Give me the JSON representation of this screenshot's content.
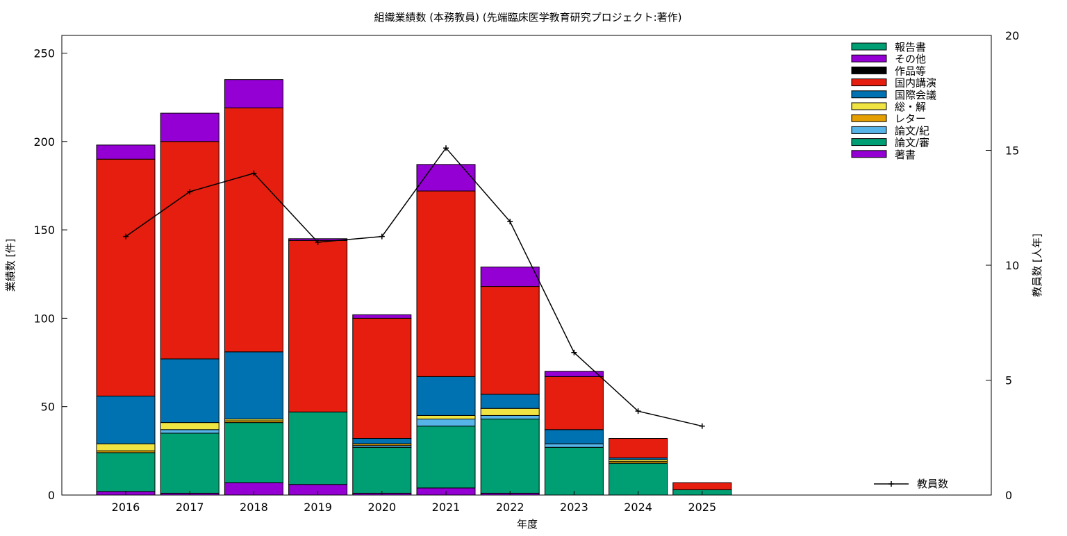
{
  "chart_data": {
    "type": "bar",
    "stacked": true,
    "title": "組織業績数 (本務教員) (先端臨床医学教育研究プロジェクト:著作)",
    "xlabel": "年度",
    "ylabel": "業績数 [件]",
    "y2label": "教員数 [人年]",
    "ylim": [
      0,
      260
    ],
    "y2lim": [
      0,
      20
    ],
    "yticks": [
      0,
      50,
      100,
      150,
      200,
      250
    ],
    "y2ticks": [
      0,
      5,
      10,
      15,
      20
    ],
    "grid": false,
    "legend_position": "top-right",
    "categories": [
      "2016",
      "2017",
      "2018",
      "2019",
      "2020",
      "2021",
      "2022",
      "2023",
      "2024",
      "2025"
    ],
    "series": [
      {
        "name": "著書",
        "color": "#9400d3",
        "values": [
          2,
          1,
          7,
          6,
          1,
          4,
          1,
          0,
          0,
          0
        ]
      },
      {
        "name": "論文/審",
        "color": "#009e73",
        "values": [
          22,
          34,
          34,
          41,
          26,
          35,
          42,
          27,
          18,
          3
        ]
      },
      {
        "name": "論文/紀",
        "color": "#56b4e9",
        "values": [
          0,
          2,
          0,
          0,
          1,
          4,
          2,
          2,
          0,
          0
        ]
      },
      {
        "name": "レター",
        "color": "#e69f00",
        "values": [
          1,
          0,
          1,
          0,
          1,
          0,
          0,
          0,
          1,
          0
        ]
      },
      {
        "name": "総・解",
        "color": "#f0e442",
        "values": [
          4,
          4,
          1,
          0,
          0,
          2,
          4,
          0,
          1,
          0
        ]
      },
      {
        "name": "国際会議",
        "color": "#0072b2",
        "values": [
          27,
          36,
          38,
          0,
          3,
          22,
          8,
          8,
          1,
          0
        ]
      },
      {
        "name": "国内講演",
        "color": "#e51e10",
        "values": [
          134,
          123,
          138,
          97,
          68,
          105,
          61,
          30,
          11,
          4
        ]
      },
      {
        "name": "作品等",
        "color": "#000000",
        "values": [
          0,
          0,
          0,
          0,
          0,
          0,
          0,
          0,
          0,
          0
        ]
      },
      {
        "name": "その他",
        "color": "#9400d3",
        "values": [
          8,
          16,
          16,
          1,
          2,
          15,
          11,
          3,
          0,
          0
        ]
      },
      {
        "name": "報告書",
        "color": "#009e73",
        "values": [
          0,
          0,
          0,
          0,
          0,
          0,
          0,
          0,
          0,
          0
        ]
      }
    ],
    "line_series": {
      "name": "教員数",
      "axis": "y2",
      "color": "#000000",
      "values": [
        11.25,
        13.2,
        14.0,
        11.0,
        11.25,
        15.1,
        11.9,
        6.2,
        3.65,
        3.0
      ]
    }
  }
}
